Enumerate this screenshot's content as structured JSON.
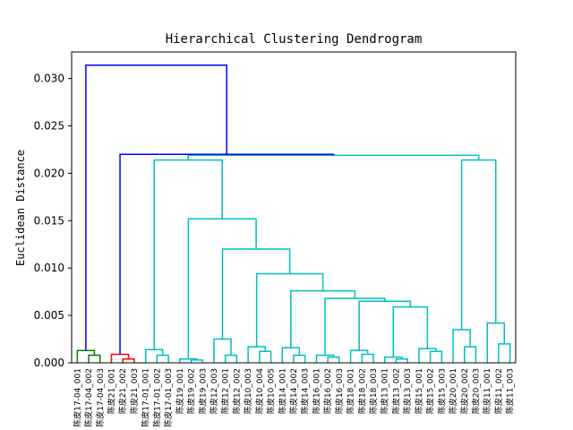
{
  "chart_data": {
    "type": "dendrogram",
    "title": "Hierarchical Clustering Dendrogram",
    "xlabel": "",
    "ylabel": "Euclidean Distance",
    "ylim": [
      0,
      0.0328
    ],
    "yticks": [
      "0.000",
      "0.005",
      "0.010",
      "0.015",
      "0.020",
      "0.025",
      "0.030"
    ],
    "ytick_values": [
      0,
      0.005,
      0.01,
      0.015,
      0.02,
      0.025,
      0.03
    ],
    "grid": false,
    "leaves": [
      "陈皮17-04_001",
      "陈皮17-04_002",
      "陈皮17-04_003",
      "陈皮21_001",
      "陈皮21_002",
      "陈皮21_003",
      "陈皮17-01_001",
      "陈皮17-01_002",
      "陈皮17-01_003",
      "陈皮19_001",
      "陈皮19_002",
      "陈皮19_003",
      "陈皮12_003",
      "陈皮12_001",
      "陈皮12_002",
      "陈皮10_003",
      "陈皮10_004",
      "陈皮10_005",
      "陈皮14_001",
      "陈皮14_002",
      "陈皮14_003",
      "陈皮16_001",
      "陈皮16_002",
      "陈皮16_003",
      "陈皮18_001",
      "陈皮18_002",
      "陈皮18_003",
      "陈皮13_001",
      "陈皮13_002",
      "陈皮13_003",
      "陈皮15_001",
      "陈皮15_002",
      "陈皮15_003",
      "陈皮20_001",
      "陈皮20_002",
      "陈皮20_003",
      "陈皮11_001",
      "陈皮11_002",
      "陈皮11_003"
    ],
    "link_colors": {
      "top": "#0000ff",
      "cluster_17_04": "#008000",
      "cluster_21": "#ff0000",
      "cluster_rest": "#00bfbf"
    },
    "links": [
      {
        "a": "L1",
        "b": "L2",
        "h": 0.0008,
        "id": "n1",
        "c": "g"
      },
      {
        "a": "L0",
        "b": "n1",
        "h": 0.0013,
        "id": "n2",
        "c": "g"
      },
      {
        "a": "L4",
        "b": "L5",
        "h": 0.0004,
        "id": "n3",
        "c": "r"
      },
      {
        "a": "L3",
        "b": "n3",
        "h": 0.0009,
        "id": "n4",
        "c": "r"
      },
      {
        "a": "L7",
        "b": "L8",
        "h": 0.0008,
        "id": "n5",
        "c": "c"
      },
      {
        "a": "L6",
        "b": "n5",
        "h": 0.0014,
        "id": "n6",
        "c": "c"
      },
      {
        "a": "L10",
        "b": "L11",
        "h": 0.0003,
        "id": "n7",
        "c": "c"
      },
      {
        "a": "L9",
        "b": "n7",
        "h": 0.0004,
        "id": "n8",
        "c": "c"
      },
      {
        "a": "L13",
        "b": "L14",
        "h": 0.0008,
        "id": "n9",
        "c": "c"
      },
      {
        "a": "L12",
        "b": "n9",
        "h": 0.0025,
        "id": "n10",
        "c": "c"
      },
      {
        "a": "L16",
        "b": "L17",
        "h": 0.0012,
        "id": "n11",
        "c": "c"
      },
      {
        "a": "L15",
        "b": "n11",
        "h": 0.0017,
        "id": "n12",
        "c": "c"
      },
      {
        "a": "L19",
        "b": "L20",
        "h": 0.0008,
        "id": "n13",
        "c": "c"
      },
      {
        "a": "L18",
        "b": "n13",
        "h": 0.0016,
        "id": "n14",
        "c": "c"
      },
      {
        "a": "L22",
        "b": "L23",
        "h": 0.0006,
        "id": "n15",
        "c": "c"
      },
      {
        "a": "L21",
        "b": "n15",
        "h": 0.0008,
        "id": "n16",
        "c": "c"
      },
      {
        "a": "L25",
        "b": "L26",
        "h": 0.0009,
        "id": "n17",
        "c": "c"
      },
      {
        "a": "L24",
        "b": "n17",
        "h": 0.0013,
        "id": "n18",
        "c": "c"
      },
      {
        "a": "L28",
        "b": "L29",
        "h": 0.0004,
        "id": "n19",
        "c": "c"
      },
      {
        "a": "L27",
        "b": "n19",
        "h": 0.0006,
        "id": "n20",
        "c": "c"
      },
      {
        "a": "L31",
        "b": "L32",
        "h": 0.0012,
        "id": "n21",
        "c": "c"
      },
      {
        "a": "L30",
        "b": "n21",
        "h": 0.0015,
        "id": "n22",
        "c": "c"
      },
      {
        "a": "L34",
        "b": "L35",
        "h": 0.0017,
        "id": "n23",
        "c": "c"
      },
      {
        "a": "L33",
        "b": "n23",
        "h": 0.0035,
        "id": "n24",
        "c": "c"
      },
      {
        "a": "L37",
        "b": "L38",
        "h": 0.002,
        "id": "n25",
        "c": "c"
      },
      {
        "a": "L36",
        "b": "n25",
        "h": 0.0042,
        "id": "n26",
        "c": "c"
      },
      {
        "a": "n20",
        "b": "n22",
        "h": 0.0059,
        "id": "n27",
        "c": "c"
      },
      {
        "a": "n18",
        "b": "n27",
        "h": 0.0065,
        "id": "n28",
        "c": "c"
      },
      {
        "a": "n16",
        "b": "n28",
        "h": 0.0068,
        "id": "n29",
        "c": "c"
      },
      {
        "a": "n14",
        "b": "n29",
        "h": 0.0076,
        "id": "n30",
        "c": "c"
      },
      {
        "a": "n12",
        "b": "n30",
        "h": 0.0094,
        "id": "n31",
        "c": "c"
      },
      {
        "a": "n10",
        "b": "n31",
        "h": 0.012,
        "id": "n32",
        "c": "c"
      },
      {
        "a": "n8",
        "b": "n32",
        "h": 0.0152,
        "id": "n33",
        "c": "c"
      },
      {
        "a": "n6",
        "b": "n33",
        "h": 0.0214,
        "id": "n34",
        "c": "c"
      },
      {
        "a": "n24",
        "b": "n26",
        "h": 0.0214,
        "id": "n35",
        "c": "c"
      },
      {
        "a": "n34",
        "b": "n35",
        "h": 0.0219,
        "id": "n36",
        "c": "c"
      },
      {
        "a": "n4",
        "b": "n36",
        "h": 0.022,
        "id": "n37",
        "c": "b"
      },
      {
        "a": "n2",
        "b": "n37",
        "h": 0.0314,
        "id": "n38",
        "c": "b"
      }
    ]
  }
}
